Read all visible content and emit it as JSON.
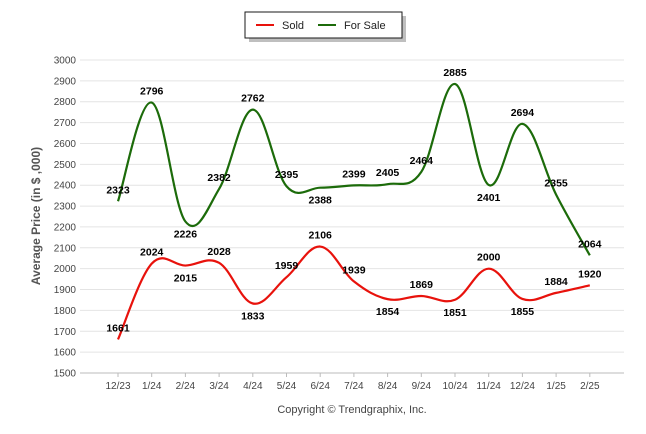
{
  "chart_data": {
    "type": "line",
    "ylabel": "Average Price (in $ ,000)",
    "xlabel": "",
    "footer": "Copyright © Trendgraphix, Inc.",
    "categories": [
      "12/23",
      "1/24",
      "2/24",
      "3/24",
      "4/24",
      "5/24",
      "6/24",
      "7/24",
      "8/24",
      "9/24",
      "10/24",
      "11/24",
      "12/24",
      "1/25",
      "2/25"
    ],
    "ylim": [
      1500,
      3000
    ],
    "yticks": [
      1500,
      1600,
      1700,
      1800,
      1900,
      2000,
      2100,
      2200,
      2300,
      2400,
      2500,
      2600,
      2700,
      2800,
      2900,
      3000
    ],
    "grid": true,
    "legend_position": "top-center",
    "series": [
      {
        "name": "Sold",
        "color": "#e8120c",
        "values": [
          1661,
          2024,
          2015,
          2028,
          1833,
          1959,
          2106,
          1939,
          1854,
          1869,
          1851,
          2000,
          1855,
          1884,
          1920
        ]
      },
      {
        "name": "For Sale",
        "color": "#1c6b0a",
        "values": [
          2323,
          2796,
          2226,
          2382,
          2762,
          2395,
          2388,
          2399,
          2405,
          2464,
          2885,
          2401,
          2694,
          2355,
          2064
        ]
      }
    ]
  }
}
